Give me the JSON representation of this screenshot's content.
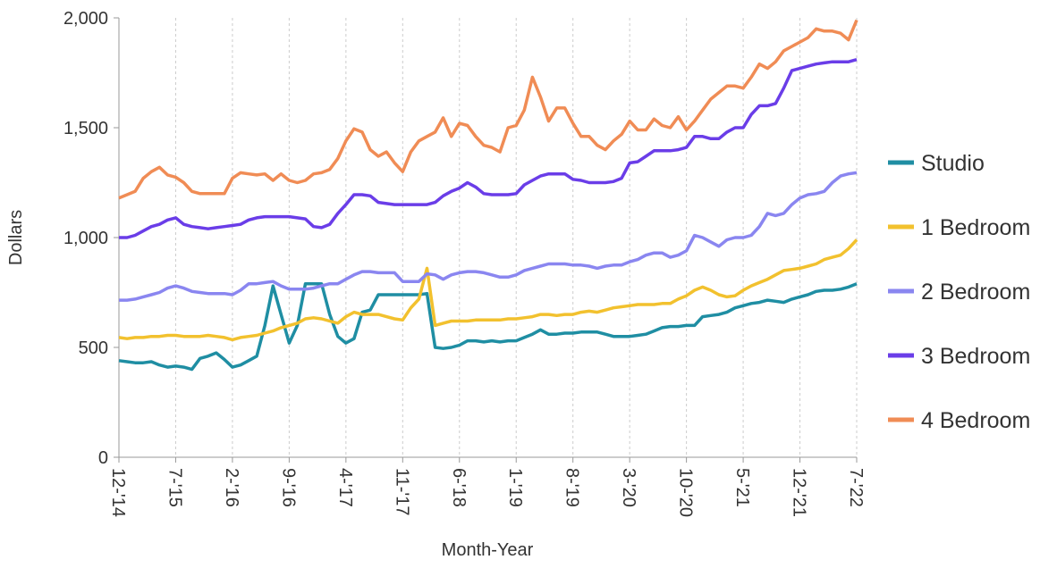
{
  "chart_data": {
    "type": "line",
    "xlabel": "Month-Year",
    "ylabel": "Dollars",
    "categories": [
      "12-'14",
      null,
      null,
      null,
      null,
      null,
      null,
      "7-'15",
      null,
      null,
      null,
      null,
      null,
      null,
      "2-'16",
      null,
      null,
      null,
      null,
      null,
      null,
      "9-'16",
      null,
      null,
      null,
      null,
      null,
      null,
      "4-'17",
      null,
      null,
      null,
      null,
      null,
      null,
      "11-'17",
      null,
      null,
      null,
      null,
      null,
      null,
      "6-'18",
      null,
      null,
      null,
      null,
      null,
      null,
      "1-'19",
      null,
      null,
      null,
      null,
      null,
      null,
      "8-'19",
      null,
      null,
      null,
      null,
      null,
      null,
      "3-'20",
      null,
      null,
      null,
      null,
      null,
      null,
      "10-'20",
      null,
      null,
      null,
      null,
      null,
      null,
      "5-'21",
      null,
      null,
      null,
      null,
      null,
      null,
      "12-'21",
      null,
      null,
      null,
      null,
      null,
      null,
      "7-'22"
    ],
    "ylim": [
      0,
      2000
    ],
    "yticks": [
      0,
      500,
      {
        "value": 1000,
        "label": "1,000"
      },
      {
        "value": 1500,
        "label": "1,500"
      },
      {
        "value": 2000,
        "label": "2,000"
      }
    ],
    "grid": "x",
    "legend": "right",
    "series": [
      {
        "name": "Studio",
        "color": "#1f8ea3",
        "values": [
          440,
          435,
          430,
          430,
          435,
          420,
          410,
          415,
          410,
          400,
          450,
          460,
          475,
          445,
          410,
          420,
          440,
          460,
          600,
          780,
          650,
          520,
          600,
          790,
          790,
          790,
          650,
          550,
          520,
          540,
          660,
          670,
          740,
          740,
          740,
          740,
          740,
          740,
          745,
          500,
          495,
          500,
          510,
          530,
          530,
          525,
          530,
          525,
          530,
          530,
          545,
          560,
          580,
          560,
          560,
          565,
          565,
          570,
          570,
          570,
          560,
          550,
          550,
          550,
          555,
          560,
          575,
          590,
          595,
          595,
          600,
          600,
          640,
          645,
          650,
          660,
          680,
          690,
          700,
          705,
          715,
          710,
          705,
          720,
          730,
          740,
          755,
          760,
          760,
          765,
          775,
          790
        ]
      },
      {
        "name": "1 Bedroom",
        "color": "#f2c12e",
        "values": [
          545,
          540,
          545,
          545,
          550,
          550,
          555,
          555,
          550,
          550,
          550,
          555,
          550,
          545,
          535,
          545,
          550,
          555,
          565,
          575,
          590,
          600,
          610,
          630,
          635,
          630,
          620,
          610,
          640,
          660,
          650,
          650,
          650,
          640,
          630,
          625,
          680,
          720,
          860,
          600,
          610,
          620,
          620,
          620,
          625,
          625,
          625,
          625,
          630,
          630,
          635,
          640,
          650,
          650,
          645,
          650,
          650,
          660,
          665,
          660,
          670,
          680,
          685,
          690,
          695,
          695,
          695,
          700,
          700,
          720,
          735,
          760,
          775,
          760,
          740,
          730,
          735,
          760,
          780,
          795,
          810,
          830,
          850,
          855,
          860,
          870,
          880,
          900,
          910,
          920,
          950,
          990
        ]
      },
      {
        "name": "2 Bedroom",
        "color": "#8a86f0",
        "values": [
          715,
          715,
          720,
          730,
          740,
          750,
          770,
          780,
          770,
          755,
          750,
          745,
          745,
          745,
          740,
          760,
          790,
          790,
          795,
          800,
          780,
          765,
          765,
          765,
          770,
          780,
          790,
          790,
          810,
          830,
          845,
          845,
          840,
          840,
          840,
          800,
          800,
          800,
          835,
          830,
          810,
          830,
          840,
          845,
          845,
          840,
          830,
          820,
          820,
          830,
          850,
          860,
          870,
          880,
          880,
          880,
          875,
          875,
          870,
          860,
          870,
          875,
          875,
          890,
          900,
          920,
          930,
          930,
          910,
          920,
          940,
          1010,
          1000,
          980,
          960,
          990,
          1000,
          1000,
          1010,
          1050,
          1110,
          1100,
          1110,
          1150,
          1180,
          1195,
          1200,
          1210,
          1250,
          1280,
          1290,
          1295
        ]
      },
      {
        "name": "3 Bedroom",
        "color": "#6a3de8",
        "values": [
          1000,
          1000,
          1010,
          1030,
          1050,
          1060,
          1080,
          1090,
          1060,
          1050,
          1045,
          1040,
          1045,
          1050,
          1055,
          1060,
          1080,
          1090,
          1095,
          1095,
          1095,
          1095,
          1090,
          1085,
          1050,
          1045,
          1060,
          1110,
          1150,
          1195,
          1195,
          1190,
          1160,
          1155,
          1150,
          1150,
          1150,
          1150,
          1150,
          1160,
          1190,
          1210,
          1225,
          1250,
          1230,
          1200,
          1195,
          1195,
          1195,
          1200,
          1240,
          1260,
          1280,
          1290,
          1290,
          1290,
          1265,
          1260,
          1250,
          1250,
          1250,
          1255,
          1270,
          1340,
          1345,
          1370,
          1395,
          1395,
          1395,
          1400,
          1410,
          1460,
          1460,
          1450,
          1450,
          1480,
          1500,
          1500,
          1560,
          1600,
          1600,
          1610,
          1680,
          1760,
          1770,
          1780,
          1790,
          1795,
          1800,
          1800,
          1800,
          1810
        ]
      },
      {
        "name": "4 Bedroom",
        "color": "#f08c55",
        "values": [
          1180,
          1195,
          1210,
          1270,
          1300,
          1320,
          1285,
          1275,
          1250,
          1210,
          1200,
          1200,
          1200,
          1200,
          1270,
          1295,
          1290,
          1285,
          1290,
          1260,
          1290,
          1260,
          1250,
          1260,
          1290,
          1295,
          1310,
          1360,
          1440,
          1495,
          1480,
          1400,
          1370,
          1390,
          1340,
          1300,
          1390,
          1440,
          1460,
          1480,
          1545,
          1460,
          1520,
          1510,
          1460,
          1420,
          1410,
          1390,
          1500,
          1510,
          1580,
          1730,
          1640,
          1530,
          1590,
          1590,
          1520,
          1460,
          1460,
          1420,
          1400,
          1440,
          1470,
          1530,
          1490,
          1490,
          1540,
          1510,
          1500,
          1550,
          1490,
          1530,
          1580,
          1630,
          1660,
          1690,
          1690,
          1680,
          1730,
          1790,
          1770,
          1800,
          1850,
          1870,
          1890,
          1910,
          1950,
          1940,
          1940,
          1930,
          1900,
          1990
        ]
      }
    ]
  }
}
